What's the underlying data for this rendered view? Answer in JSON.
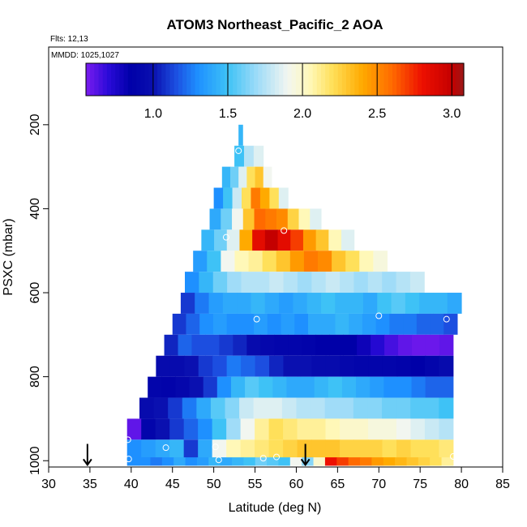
{
  "chart_data": {
    "type": "heatmap",
    "title": "ATOM3 Northeast_Pacific_2 AOA",
    "flights_label": "Flts: 12,13",
    "mmdd_label": "MMDD: 1025,1027",
    "xlabel": "Latitude (deg N)",
    "ylabel": "PSXC (mbar)",
    "xlim": [
      30,
      85
    ],
    "ylim": [
      1015,
      15
    ],
    "x_ticks": [
      30,
      35,
      40,
      45,
      50,
      55,
      60,
      65,
      70,
      75,
      80,
      85
    ],
    "y_ticks": [
      200,
      400,
      600,
      800,
      1000
    ],
    "colorbar": {
      "range": [
        0.55,
        3.08
      ],
      "ticks": [
        1.0,
        1.5,
        2.0,
        2.5,
        3.0
      ],
      "tick_labels": [
        "1.0",
        "1.5",
        "2.0",
        "2.5",
        "3.0"
      ],
      "stops": [
        {
          "v": 0.55,
          "color": "#7b1cf0"
        },
        {
          "v": 0.7,
          "color": "#2a0ad8"
        },
        {
          "v": 0.85,
          "color": "#0000a8"
        },
        {
          "v": 1.0,
          "color": "#0a10b0"
        },
        {
          "v": 1.15,
          "color": "#1c4ee0"
        },
        {
          "v": 1.3,
          "color": "#1e90ff"
        },
        {
          "v": 1.5,
          "color": "#3ec2f6"
        },
        {
          "v": 1.7,
          "color": "#a0dcf8"
        },
        {
          "v": 1.9,
          "color": "#f2f6f0"
        },
        {
          "v": 2.05,
          "color": "#fff8b8"
        },
        {
          "v": 2.2,
          "color": "#ffe05a"
        },
        {
          "v": 2.4,
          "color": "#ffaa00"
        },
        {
          "v": 2.6,
          "color": "#ff6a00"
        },
        {
          "v": 2.8,
          "color": "#ee1000"
        },
        {
          "v": 3.0,
          "color": "#c40000"
        },
        {
          "v": 3.08,
          "color": "#9c1818"
        }
      ]
    },
    "bin_height_mbar": 50,
    "rows": [
      {
        "p": 225,
        "lat": [
          53,
          53.5
        ],
        "v": [
          1.45
        ]
      },
      {
        "p": 275,
        "lat": [
          52.5,
          56
        ],
        "v": [
          1.5,
          1.75,
          1.85
        ]
      },
      {
        "p": 325,
        "lat": [
          51,
          57
        ],
        "v": [
          1.45,
          1.6,
          1.85,
          2.2,
          2.3,
          1.9
        ]
      },
      {
        "p": 375,
        "lat": [
          50,
          59
        ],
        "v": [
          1.3,
          1.5,
          1.8,
          2.2,
          2.55,
          2.4,
          2.2,
          1.85
        ]
      },
      {
        "p": 425,
        "lat": [
          49.5,
          63
        ],
        "v": [
          1.4,
          1.6,
          1.9,
          2.3,
          2.6,
          2.55,
          2.5,
          2.25,
          2.05,
          1.85
        ]
      },
      {
        "p": 475,
        "lat": [
          48.5,
          67
        ],
        "v": [
          1.45,
          1.6,
          1.85,
          2.4,
          2.85,
          3.0,
          2.85,
          2.7,
          2.45,
          2.3,
          2.05,
          1.85
        ]
      },
      {
        "p": 525,
        "lat": [
          47.5,
          71
        ],
        "v": [
          1.35,
          1.5,
          1.9,
          2.05,
          2.1,
          2.2,
          2.3,
          2.45,
          2.55,
          2.5,
          2.3,
          2.2,
          2.05,
          1.95
        ]
      },
      {
        "p": 575,
        "lat": [
          46.5,
          75.5
        ],
        "v": [
          1.3,
          1.45,
          1.6,
          1.7,
          1.75,
          1.75,
          1.8,
          1.75,
          1.7,
          1.75,
          1.8,
          1.75,
          1.7,
          1.75,
          1.7,
          1.75,
          1.8
        ]
      },
      {
        "p": 625,
        "lat": [
          46,
          80
        ],
        "v": [
          1.1,
          1.25,
          1.35,
          1.4,
          1.4,
          1.45,
          1.4,
          1.35,
          1.4,
          1.45,
          1.5,
          1.45,
          1.45,
          1.4,
          1.5,
          1.55,
          1.5,
          1.45,
          1.45,
          1.4
        ]
      },
      {
        "p": 675,
        "lat": [
          45,
          79.5
        ],
        "v": [
          1.1,
          1.2,
          1.3,
          1.35,
          1.3,
          1.3,
          1.35,
          1.3,
          1.35,
          1.3,
          1.4,
          1.4,
          1.45,
          1.4,
          1.35,
          1.3,
          1.25,
          1.25,
          1.2,
          1.2,
          1.15
        ]
      },
      {
        "p": 725,
        "lat": [
          44,
          79
        ],
        "v": [
          1.05,
          1.2,
          1.15,
          1.15,
          1.1,
          1.05,
          0.95,
          0.92,
          0.9,
          0.9,
          0.88,
          0.85,
          0.85,
          0.85,
          0.8,
          0.72,
          0.65,
          0.6,
          0.58,
          0.58,
          0.6
        ]
      },
      {
        "p": 775,
        "lat": [
          43,
          79
        ],
        "v": [
          0.95,
          0.95,
          1.0,
          1.1,
          1.15,
          1.25,
          1.2,
          1.15,
          1.05,
          1.0,
          1.0,
          0.95,
          0.95,
          0.92,
          0.9,
          0.9,
          0.9,
          0.88,
          0.85,
          0.9,
          0.95
        ]
      },
      {
        "p": 825,
        "lat": [
          42,
          79
        ],
        "v": [
          0.9,
          0.88,
          0.92,
          1.0,
          1.1,
          1.3,
          1.45,
          1.55,
          1.5,
          1.45,
          1.4,
          1.4,
          1.45,
          1.5,
          1.45,
          1.4,
          1.35,
          1.3,
          1.3,
          1.25,
          1.2,
          1.2
        ]
      },
      {
        "p": 875,
        "lat": [
          41,
          79
        ],
        "v": [
          0.95,
          1.0,
          1.1,
          1.25,
          1.4,
          1.55,
          1.65,
          1.8,
          1.85,
          1.85,
          1.8,
          1.75,
          1.75,
          1.7,
          1.7,
          1.65,
          1.65,
          1.6,
          1.6,
          1.55,
          1.55,
          1.5
        ]
      },
      {
        "p": 925,
        "lat": [
          39.5,
          79
        ],
        "v": [
          0.6,
          0.9,
          1.0,
          1.1,
          1.2,
          1.3,
          1.5,
          1.7,
          1.9,
          2.1,
          2.2,
          2.15,
          2.1,
          2.1,
          2.05,
          2.0,
          2.0,
          1.95,
          1.95,
          1.9,
          1.85,
          1.8,
          1.75
        ]
      },
      {
        "p": 975,
        "lat": [
          39.5,
          79
        ],
        "v": [
          1.3,
          1.35,
          1.4,
          1.45,
          1.1,
          1.4,
          1.9,
          2.05,
          2.1,
          2.15,
          2.2,
          2.25,
          2.3,
          2.3,
          2.3,
          2.25,
          2.25,
          2.25,
          2.2,
          2.25,
          2.2,
          2.2,
          2.15
        ]
      },
      {
        "p": 1000,
        "lat": [
          39.5,
          79
        ],
        "v": [
          1.3,
          1.3,
          1.25,
          1.3,
          1.4,
          1.3,
          1.35,
          1.45,
          1.4,
          1.45,
          1.5,
          1.6,
          1.55,
          1.5,
          1.9,
          1.65,
          2.0,
          2.8,
          2.7,
          2.6,
          2.55,
          2.45,
          2.4,
          2.35,
          2.3,
          2.25,
          2.2,
          2.1
        ]
      }
    ],
    "sample_points": [
      {
        "lat": 53,
        "p": 262
      },
      {
        "lat": 51.5,
        "p": 468
      },
      {
        "lat": 58.5,
        "p": 452
      },
      {
        "lat": 55.2,
        "p": 663
      },
      {
        "lat": 70,
        "p": 655
      },
      {
        "lat": 78.2,
        "p": 663
      },
      {
        "lat": 80.0,
        "p": 570
      },
      {
        "lat": 39.8,
        "p": 875
      },
      {
        "lat": 39.6,
        "p": 950
      },
      {
        "lat": 44.2,
        "p": 969
      },
      {
        "lat": 50.2,
        "p": 967
      },
      {
        "lat": 39.7,
        "p": 996
      },
      {
        "lat": 50.6,
        "p": 998
      },
      {
        "lat": 56.0,
        "p": 994
      },
      {
        "lat": 57.6,
        "p": 991
      },
      {
        "lat": 79.0,
        "p": 990
      }
    ],
    "arrows_lat": [
      34.7,
      61.1
    ]
  }
}
